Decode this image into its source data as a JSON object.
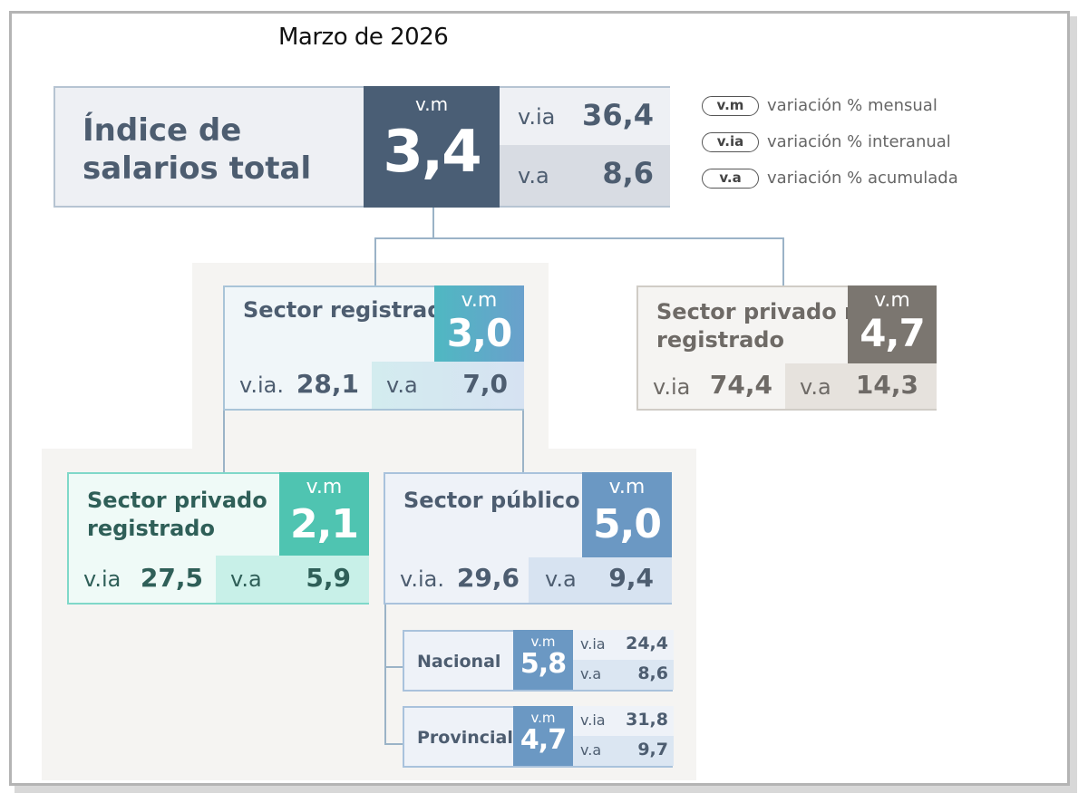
{
  "date": "Marzo  de 2026",
  "legend": [
    {
      "tag": "v.m",
      "text": "variación % mensual"
    },
    {
      "tag": "v.ia",
      "text": "variación % interanual"
    },
    {
      "tag": "v.a",
      "text": "variación % acumulada"
    }
  ],
  "total": {
    "name": "Índice de salarios total",
    "vm_label": "v.m",
    "vm": "3,4",
    "via_label": "v.ia",
    "via": "36,4",
    "va_label": "v.a",
    "va": "8,6"
  },
  "registrado": {
    "name": "Sector registrado",
    "vm_label": "v.m",
    "vm": "3,0",
    "via_label": "v.ia.",
    "via": "28,1",
    "va_label": "v.a",
    "va": "7,0"
  },
  "no_registrado": {
    "name": "Sector privado no registrado",
    "vm_label": "v.m",
    "vm": "4,7",
    "via_label": "v.ia",
    "via": "74,4",
    "va_label": "v.a",
    "va": "14,3"
  },
  "privado_registrado": {
    "name": "Sector privado registrado",
    "vm_label": "v.m",
    "vm": "2,1",
    "via_label": "v.ia",
    "via": "27,5",
    "va_label": "v.a",
    "va": "5,9"
  },
  "publico": {
    "name": "Sector público",
    "vm_label": "v.m",
    "vm": "5,0",
    "via_label": "v.ia.",
    "via": "29,6",
    "va_label": "v.a",
    "va": "9,4"
  },
  "nacional": {
    "name": "Nacional",
    "vm_label": "v.m",
    "vm": "5,8",
    "via_label": "v.ia",
    "via": "24,4",
    "va_label": "v.a",
    "va": "8,6"
  },
  "provincial": {
    "name": "Provincial",
    "vm_label": "v.m",
    "vm": "4,7",
    "via_label": "v.ia",
    "via": "31,8",
    "va_label": "v.a",
    "va": "9,7"
  },
  "colors": {
    "total_dark": "#4a5e75",
    "registrado_accent": "#5fa6c4",
    "no_registrado_accent": "#7b7670",
    "privado_accent": "#4fc4b1",
    "publico_accent": "#6b98c3"
  }
}
